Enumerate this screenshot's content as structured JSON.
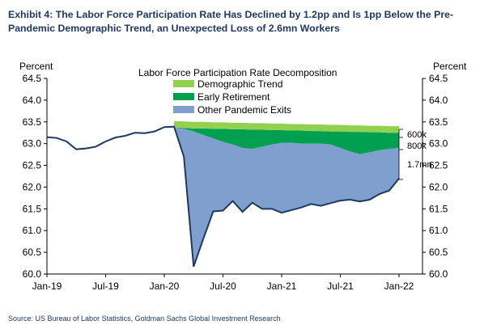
{
  "title": "Exhibit 4: The Labor Force Participation Rate Has Declined by 1.2pp and Is 1pp Below the Pre-Pandemic Demographic Trend, an Unexpected Loss of 2.6mn Workers",
  "source": "Source: US Bureau of Labor Statistics, Goldman Sachs Global Investment Research",
  "colors": {
    "line": "#1f3864",
    "demographic_trend": "#92d050",
    "early_retirement": "#00a050",
    "other_pandemic_exits": "#7f9fcf",
    "axis": "#000000"
  },
  "chart_data": {
    "type": "area",
    "title": "Labor Force Participation Rate Decomposition",
    "ylabel_left": "Percent",
    "ylabel_right": "Percent",
    "ylim": [
      60.0,
      64.5
    ],
    "yticks": [
      "64.5",
      "64.0",
      "63.5",
      "63.0",
      "62.5",
      "62.0",
      "61.5",
      "61.0",
      "60.5",
      "60.0"
    ],
    "xticks": [
      "Jan-19",
      "Jul-19",
      "Jan-20",
      "Jul-20",
      "Jan-21",
      "Jul-21",
      "Jan-22"
    ],
    "x": [
      "Jan-19",
      "Feb-19",
      "Mar-19",
      "Apr-19",
      "May-19",
      "Jun-19",
      "Jul-19",
      "Aug-19",
      "Sep-19",
      "Oct-19",
      "Nov-19",
      "Dec-19",
      "Jan-20",
      "Feb-20",
      "Mar-20",
      "Apr-20",
      "May-20",
      "Jun-20",
      "Jul-20",
      "Aug-20",
      "Sep-20",
      "Oct-20",
      "Nov-20",
      "Dec-20",
      "Jan-21",
      "Feb-21",
      "Mar-21",
      "Apr-21",
      "May-21",
      "Jun-21",
      "Jul-21",
      "Aug-21",
      "Sep-21",
      "Oct-21",
      "Nov-21",
      "Dec-21",
      "Jan-22"
    ],
    "legend": [
      "Demographic Trend",
      "Early Retirement",
      "Other Pandemic Exits"
    ],
    "series": [
      {
        "name": "Labor Force Participation Rate",
        "values": [
          63.15,
          63.13,
          63.05,
          62.87,
          62.89,
          62.93,
          63.05,
          63.14,
          63.18,
          63.25,
          63.24,
          63.28,
          63.38,
          63.39,
          62.7,
          60.17,
          60.82,
          61.44,
          61.46,
          61.68,
          61.43,
          61.64,
          61.5,
          61.5,
          61.41,
          61.47,
          61.53,
          61.61,
          61.57,
          61.63,
          61.69,
          61.71,
          61.67,
          61.71,
          61.84,
          61.92,
          62.2
        ]
      },
      {
        "name": "Demographic Trend",
        "values": [
          null,
          null,
          null,
          null,
          null,
          null,
          null,
          null,
          null,
          null,
          null,
          null,
          null,
          63.37,
          63.36,
          63.35,
          63.35,
          63.34,
          63.34,
          63.33,
          63.33,
          63.32,
          63.32,
          63.31,
          63.31,
          63.3,
          63.3,
          63.29,
          63.29,
          63.28,
          63.28,
          63.27,
          63.27,
          63.26,
          63.26,
          63.25,
          63.25
        ]
      },
      {
        "name": "Early Retirement",
        "values": [
          null,
          null,
          null,
          null,
          null,
          null,
          null,
          null,
          null,
          null,
          null,
          null,
          null,
          63.37,
          63.34,
          63.28,
          63.2,
          63.12,
          63.04,
          62.98,
          62.9,
          62.88,
          62.93,
          62.98,
          63.02,
          63.02,
          63.0,
          63.0,
          63.0,
          62.98,
          62.9,
          62.82,
          62.76,
          62.8,
          62.85,
          62.88,
          62.9
        ]
      }
    ],
    "annotations": [
      "600k",
      "800k",
      "1.7mn"
    ]
  }
}
